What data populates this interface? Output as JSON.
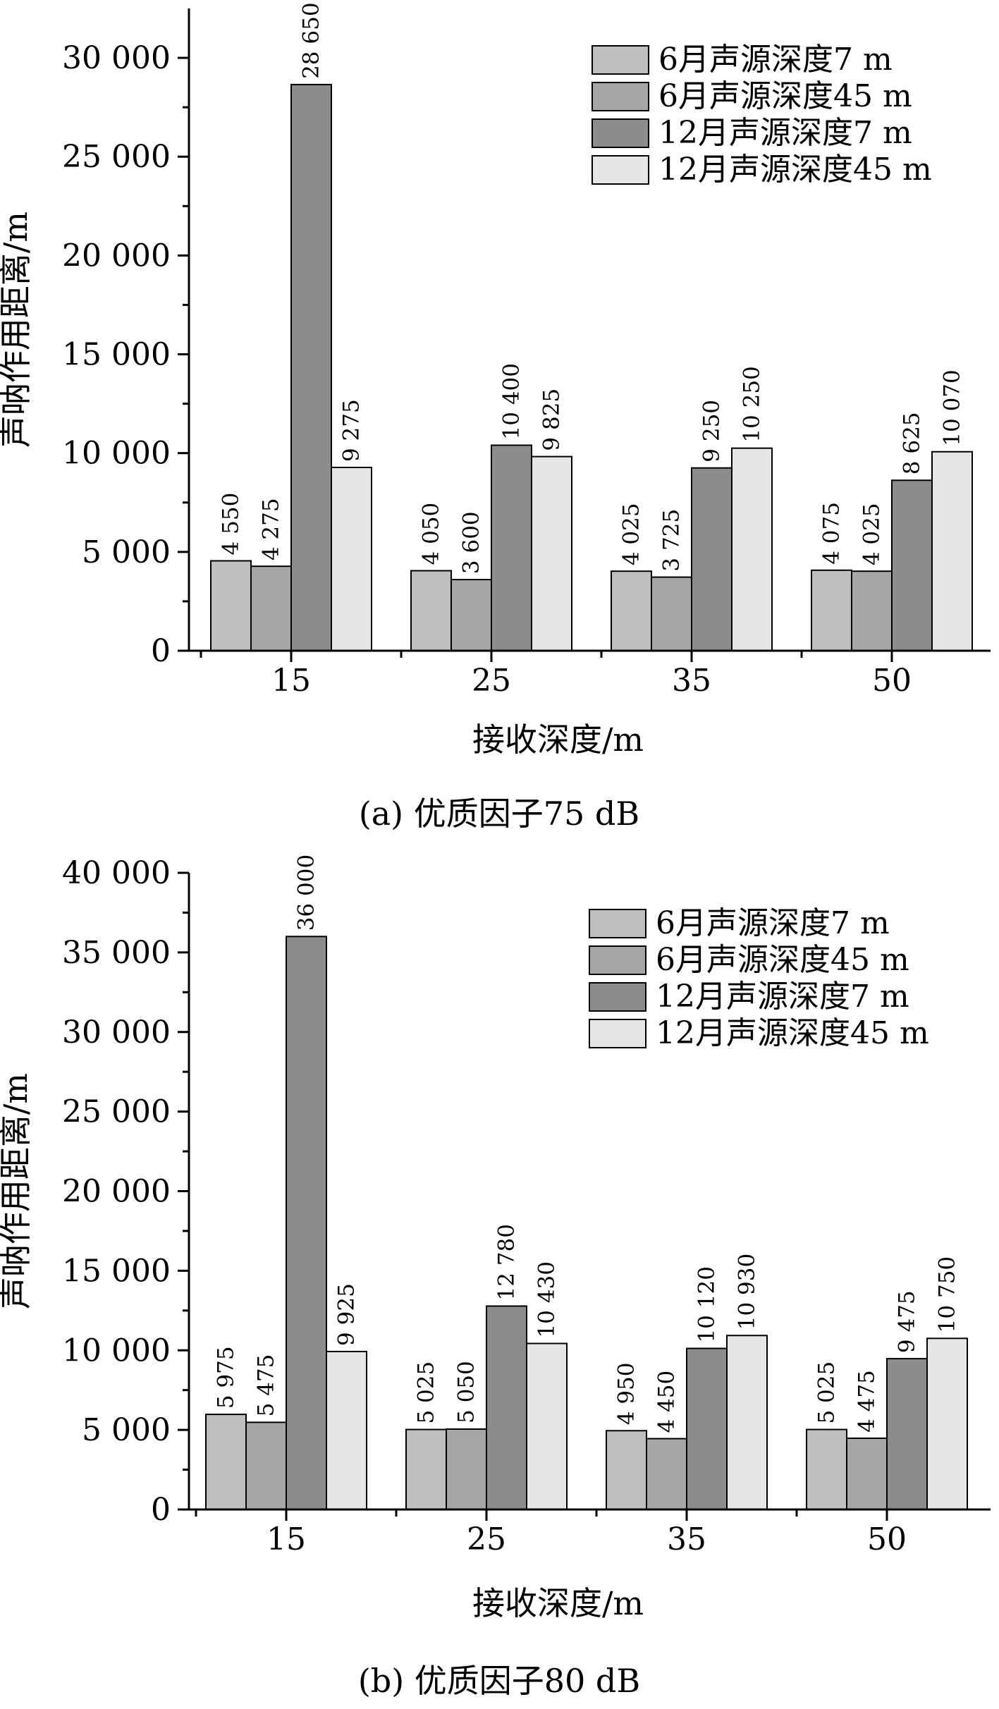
{
  "chart_data": [
    {
      "type": "bar",
      "caption": "(a) 优质因子75 dB",
      "xlabel": "接收深度/m",
      "ylabel": "声呐作用距离/m",
      "categories": [
        "15",
        "25",
        "35",
        "50"
      ],
      "ylim": [
        0,
        32500
      ],
      "yticks": [
        0,
        5000,
        10000,
        15000,
        20000,
        25000,
        30000
      ],
      "ytick_labels": [
        "0",
        "5 000",
        "10 000",
        "15 000",
        "20 000",
        "25 000",
        "30 000"
      ],
      "legend_position": "top-right",
      "series": [
        {
          "name": "6月声源深度7 m",
          "color": "#bfbfbf",
          "values": [
            4550,
            4050,
            4025,
            4075
          ],
          "labels": [
            "4 550",
            "4 050",
            "4 025",
            "4 075"
          ]
        },
        {
          "name": "6月声源深度45 m",
          "color": "#a6a6a6",
          "values": [
            4275,
            3600,
            3725,
            4025
          ],
          "labels": [
            "4 275",
            "3 600",
            "3 725",
            "4 025"
          ]
        },
        {
          "name": "12月声源深度7 m",
          "color": "#8c8c8c",
          "values": [
            28650,
            10400,
            9250,
            8625
          ],
          "labels": [
            "28 650",
            "10 400",
            "9 250",
            "8 625"
          ]
        },
        {
          "name": "12月声源深度45 m",
          "color": "#e6e6e6",
          "values": [
            9275,
            9825,
            10250,
            10070
          ],
          "labels": [
            "9 275",
            "9 825",
            "10 250",
            "10 070"
          ]
        }
      ]
    },
    {
      "type": "bar",
      "caption": "(b) 优质因子80 dB",
      "xlabel": "接收深度/m",
      "ylabel": "声呐作用距离/m",
      "categories": [
        "15",
        "25",
        "35",
        "50"
      ],
      "ylim": [
        0,
        40000
      ],
      "yticks": [
        0,
        5000,
        10000,
        15000,
        20000,
        25000,
        30000,
        35000,
        40000
      ],
      "ytick_labels": [
        "0",
        "5 000",
        "10 000",
        "15 000",
        "20 000",
        "25 000",
        "30 000",
        "35 000",
        "40 000"
      ],
      "legend_position": "top-right",
      "series": [
        {
          "name": "6月声源深度7 m",
          "color": "#bfbfbf",
          "values": [
            5975,
            5025,
            4950,
            5025
          ],
          "labels": [
            "5 975",
            "5 025",
            "4 950",
            "5 025"
          ]
        },
        {
          "name": "6月声源深度45 m",
          "color": "#a6a6a6",
          "values": [
            5475,
            5050,
            4450,
            4475
          ],
          "labels": [
            "5 475",
            "5 050",
            "4 450",
            "4 475"
          ]
        },
        {
          "name": "12月声源深度7 m",
          "color": "#8c8c8c",
          "values": [
            36000,
            12780,
            10120,
            9475
          ],
          "labels": [
            "36 000",
            "12 780",
            "10 120",
            "9 475"
          ]
        },
        {
          "name": "12月声源深度45 m",
          "color": "#e6e6e6",
          "values": [
            9925,
            10430,
            10930,
            10750
          ],
          "labels": [
            "9 925",
            "10 430",
            "10 930",
            "10 750"
          ]
        }
      ]
    }
  ]
}
